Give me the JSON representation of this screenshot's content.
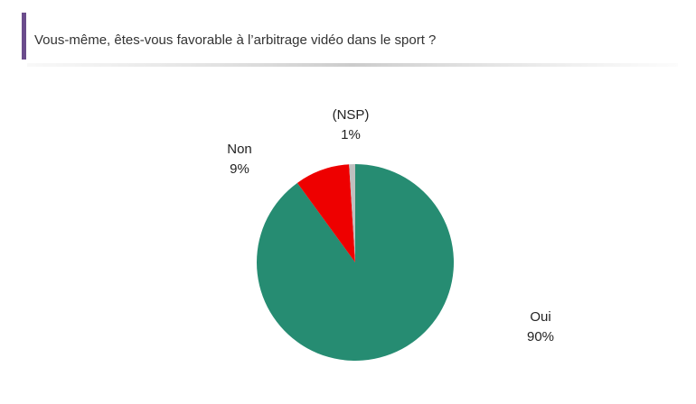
{
  "chart_data": {
    "type": "pie",
    "title": "Vous-même, êtes-vous favorable à l’arbitrage vidéo dans le sport ?",
    "categories": [
      "Oui",
      "Non",
      "(NSP)"
    ],
    "values": [
      90,
      9,
      1
    ],
    "value_labels": [
      "90%",
      "9%",
      "1%"
    ],
    "colors": [
      "#268c72",
      "#ee0000",
      "#bfbfbf"
    ]
  }
}
